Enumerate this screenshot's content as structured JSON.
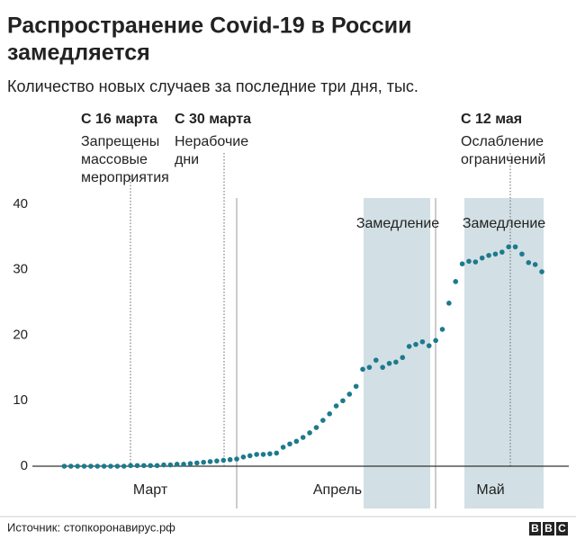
{
  "title": [
    "Распространение Covid-19 в России",
    "замедляется"
  ],
  "subtitle": "Количество новых случаев за последние три дня, тыс.",
  "chart_data": {
    "type": "scatter",
    "color": "#1d7a8c",
    "shade_color": "#d2e0e5",
    "values": [
      0,
      0,
      0,
      0,
      0,
      0,
      0,
      0,
      0,
      0,
      0.1,
      0.1,
      0.1,
      0.1,
      0.1,
      0.2,
      0.2,
      0.3,
      0.3,
      0.4,
      0.5,
      0.6,
      0.7,
      0.8,
      0.9,
      1.0,
      1.1,
      1.4,
      1.6,
      1.8,
      1.8,
      1.9,
      2.0,
      2.9,
      3.4,
      3.8,
      4.4,
      5.1,
      5.9,
      7.0,
      8.0,
      9.2,
      10.0,
      11.0,
      12.2,
      14.8,
      15.1,
      16.2,
      15.1,
      15.7,
      15.9,
      16.6,
      18.3,
      18.6,
      19.0,
      18.4,
      19.2,
      20.9,
      24.9,
      28.2,
      30.9,
      31.3,
      31.2,
      31.8,
      32.2,
      32.4,
      32.7,
      33.5,
      33.5,
      32.4,
      31.1,
      30.8,
      29.7
    ],
    "months": [
      "Март",
      "Апрель",
      "Май"
    ],
    "ylim": [
      0,
      40
    ],
    "yticks": [
      0,
      10,
      20,
      30,
      40
    ],
    "annotations": [
      {
        "title": "С 16 марта",
        "text": [
          "Запрещены",
          "массовые",
          "мероприятия"
        ]
      },
      {
        "title": "С 30 марта",
        "text": [
          "Нерабочие",
          "дни"
        ]
      },
      {
        "title": "С 12 мая",
        "text": [
          "Ослабление",
          "ограничений"
        ]
      }
    ],
    "bands": [
      "Замедление",
      "Замедление"
    ]
  },
  "footer": {
    "source": "Источник: стопкоронавирус.рф",
    "logo": [
      "B",
      "B",
      "C"
    ]
  }
}
